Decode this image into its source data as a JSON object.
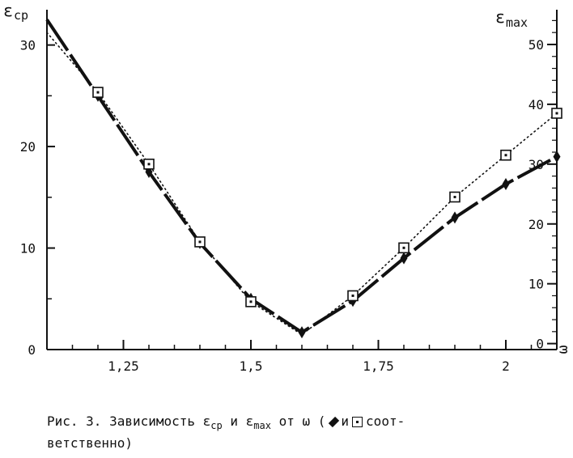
{
  "chart_data": {
    "type": "line",
    "x_tick_labels": [
      "1,25",
      "1,5",
      "1,75",
      "2"
    ],
    "x_ticks": [
      1.25,
      1.5,
      1.75,
      2.0
    ],
    "x_axis_label": "ω",
    "xlim": [
      1.1,
      2.1
    ],
    "left_axis": {
      "label_main": "ε",
      "label_sub": "cp",
      "ylim": [
        0,
        33
      ],
      "ticks": [
        0,
        10,
        20,
        30
      ],
      "tick_labels": [
        "0",
        "10",
        "20",
        "30"
      ]
    },
    "right_axis": {
      "label_main": "ε",
      "label_sub": "max",
      "ylim": [
        -1,
        55
      ],
      "ticks": [
        0,
        10,
        20,
        30,
        40,
        50
      ],
      "tick_labels": [
        "0",
        "10",
        "20",
        "30",
        "40",
        "50"
      ]
    },
    "series": [
      {
        "marker": "diamond",
        "line_style": "dashed-bold",
        "axis": "left",
        "x": [
          1.1,
          1.2,
          1.3,
          1.4,
          1.5,
          1.6,
          1.7,
          1.8,
          1.9,
          2.0,
          2.1
        ],
        "values": [
          32.5,
          25.0,
          17.5,
          10.5,
          5.0,
          1.7,
          4.8,
          9.0,
          13.0,
          16.3,
          19.0
        ]
      },
      {
        "marker": "square",
        "line_style": "dotted",
        "axis": "right",
        "x": [
          1.1,
          1.2,
          1.3,
          1.4,
          1.5,
          1.6,
          1.7,
          1.8,
          1.9,
          2.0,
          2.1
        ],
        "values": [
          52,
          42,
          30,
          17,
          7,
          1.5,
          8,
          16,
          24.5,
          31.5,
          38.5
        ]
      }
    ]
  },
  "caption": {
    "line1_prefix": "Рис. 3. Зависимость ε",
    "line1_sub1": "cp",
    "line1_mid": " и ε",
    "line1_sub2": "max",
    "line1_after": " от ω (",
    "line1_and": "и",
    "line1_end": "соот-",
    "line2": "ветственно)"
  }
}
